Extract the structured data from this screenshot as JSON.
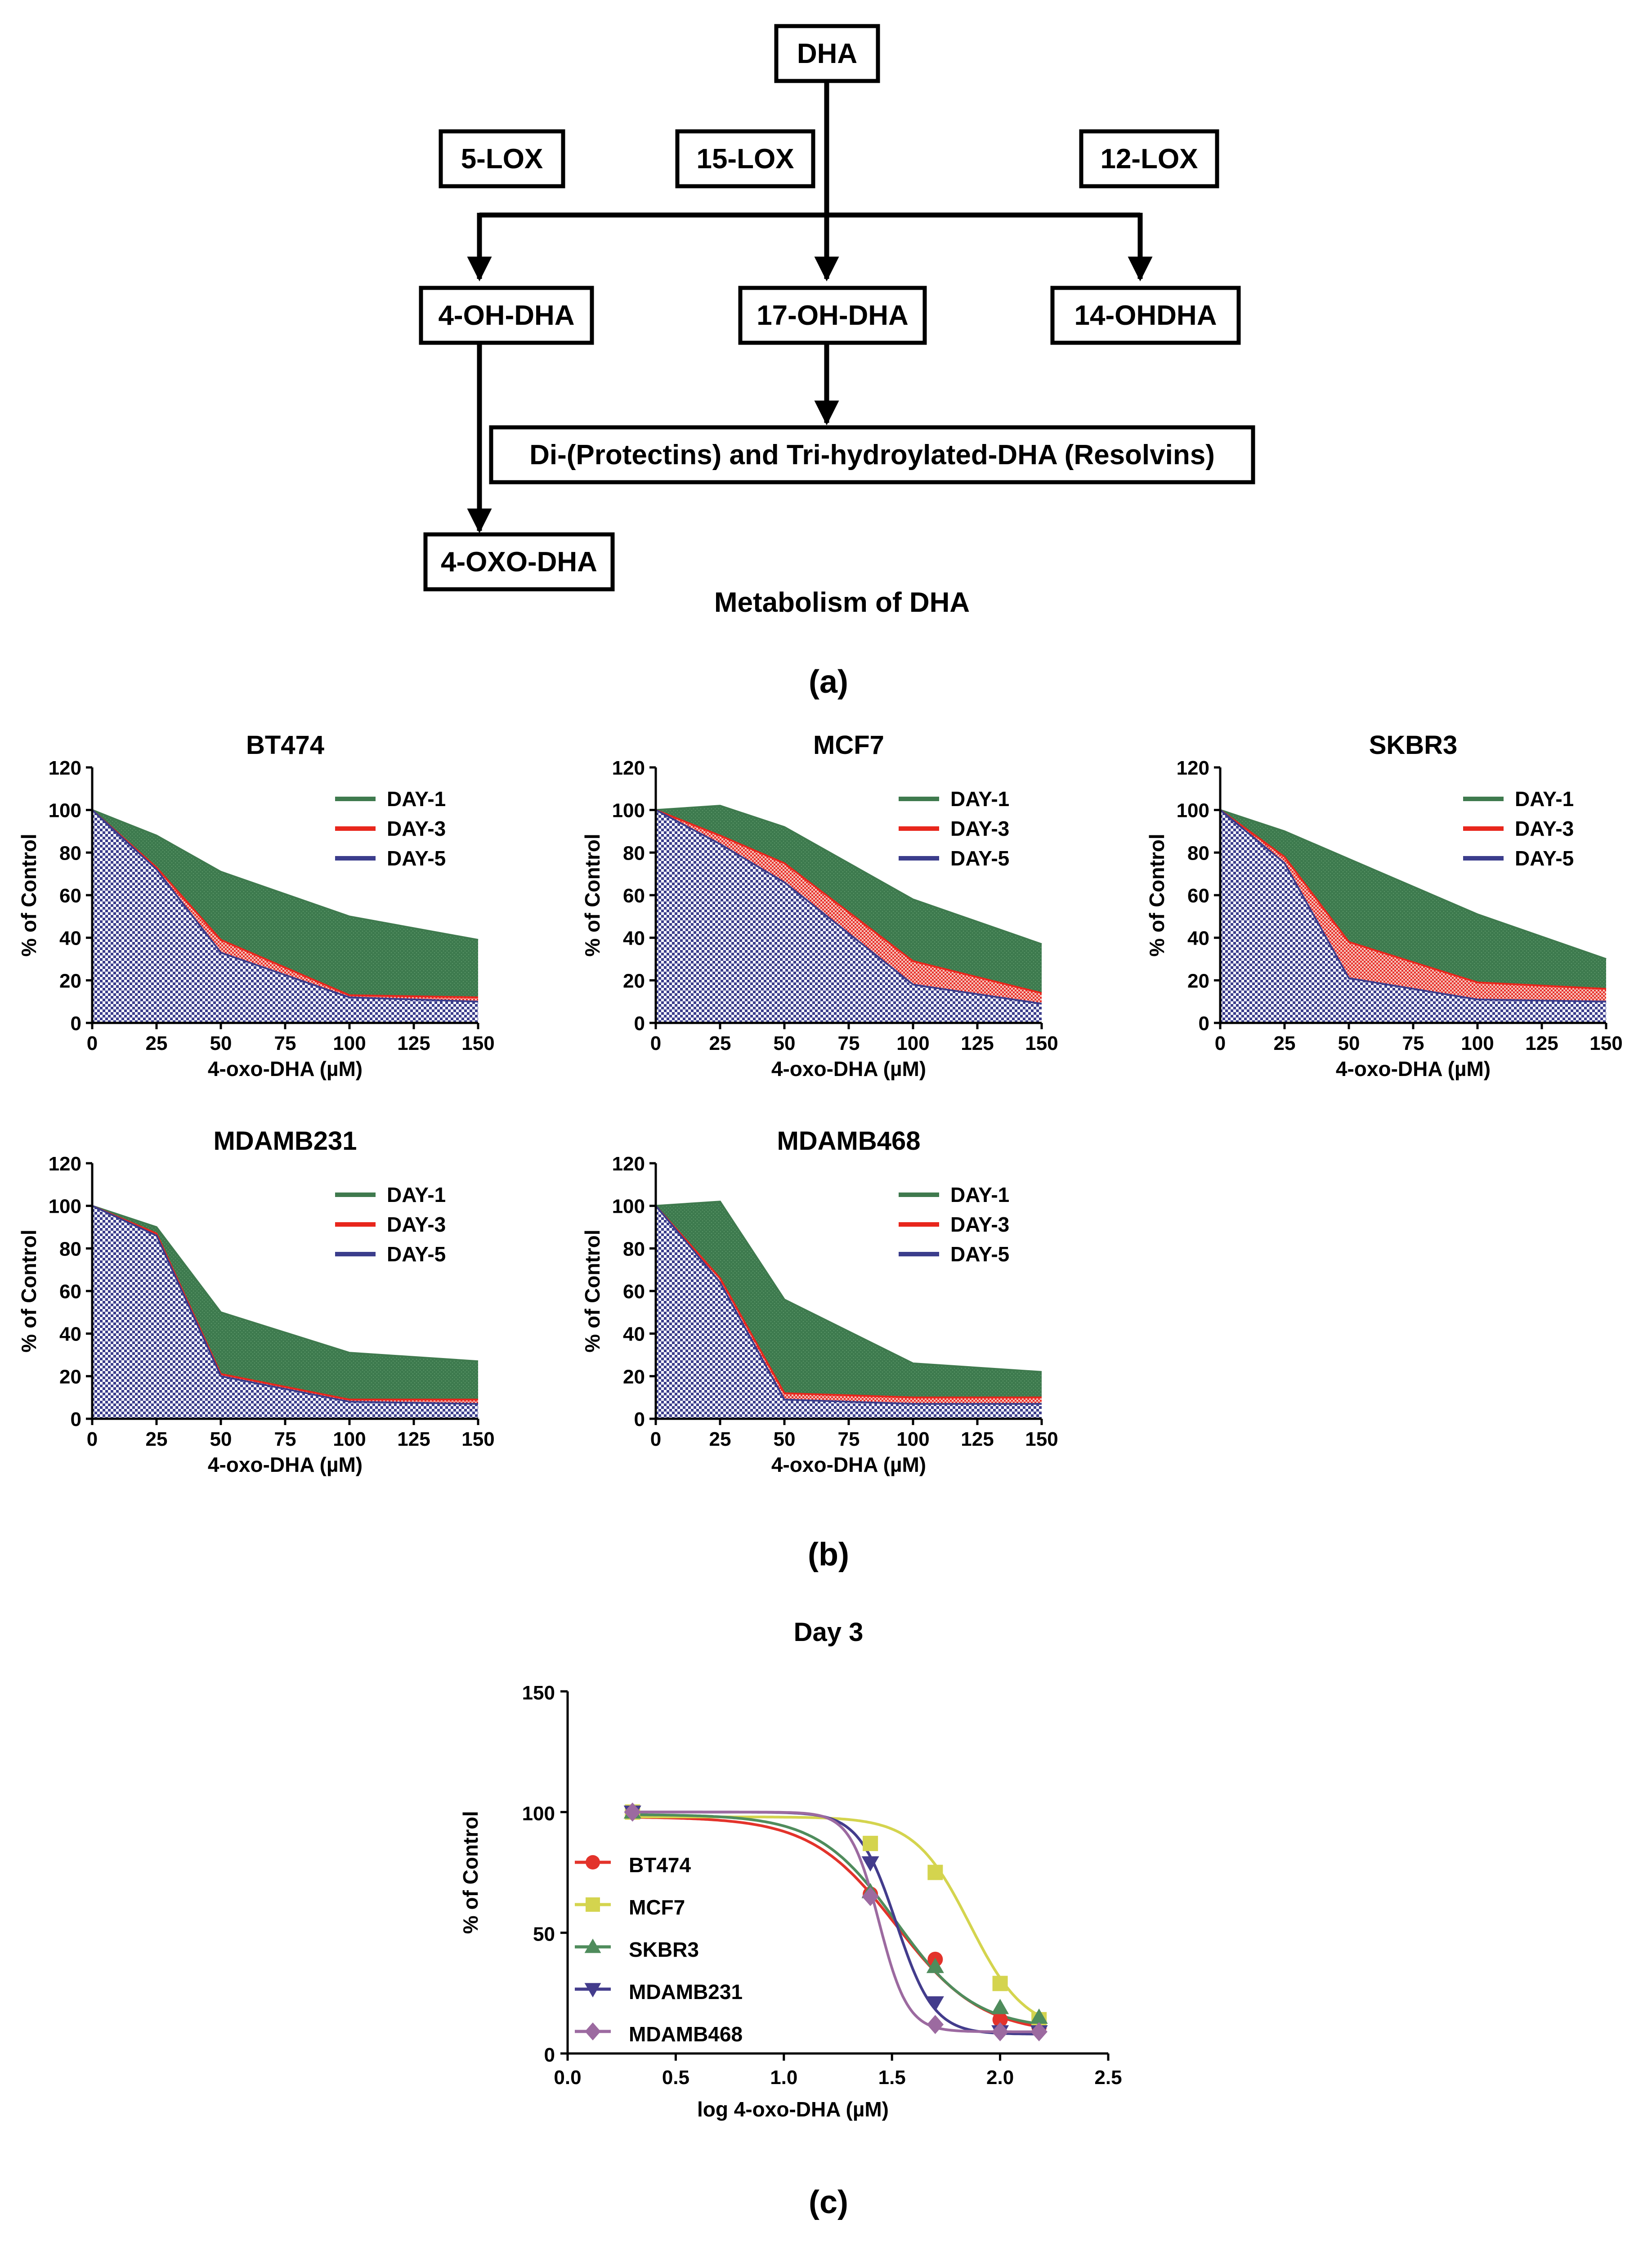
{
  "panel_a": {
    "nodes": {
      "dha": "DHA",
      "lox5": "5-LOX",
      "lox15": "15-LOX",
      "lox12": "12-LOX",
      "oh4": "4-OH-DHA",
      "oh17": "17-OH-DHA",
      "oh14": "14-OHDHA",
      "resolvins": "Di-(Protectins) and Tri-hydroylated-DHA (Resolvins)",
      "oxo4": "4-OXO-DHA"
    },
    "title": "Metabolism of DHA",
    "caption": "(a)"
  },
  "panel_b": {
    "caption": "(b)"
  },
  "panel_c": {
    "caption": "(c)"
  },
  "colors": {
    "day1": "#3f7a4e",
    "day3": "#e8261c",
    "day5": "#3b3d8c",
    "bt474": "#e3332b",
    "mcf7": "#d4d44e",
    "skbr3": "#4f8c5c",
    "mdamb231": "#433c8c",
    "mdamb468": "#9c6aa0"
  },
  "chart_data": [
    {
      "id": "bt474",
      "type": "area",
      "title": "BT474",
      "xlabel": "4-oxo-DHA (µM)",
      "ylabel": "% of Control",
      "x": [
        0,
        25,
        50,
        100,
        150
      ],
      "xticks": [
        "0",
        "25",
        "50",
        "75",
        "100",
        "125",
        "150"
      ],
      "yticks": [
        "0",
        "20",
        "40",
        "60",
        "80",
        "100",
        "120"
      ],
      "xlim": [
        0,
        150
      ],
      "ylim": [
        0,
        120
      ],
      "legend": "top-right",
      "series": [
        {
          "name": "DAY-1",
          "values": [
            100,
            88,
            71,
            50,
            39
          ]
        },
        {
          "name": "DAY-3",
          "values": [
            100,
            73,
            39,
            13,
            12
          ]
        },
        {
          "name": "DAY-5",
          "values": [
            100,
            72,
            33,
            12,
            10
          ]
        }
      ]
    },
    {
      "id": "mcf7",
      "type": "area",
      "title": "MCF7",
      "xlabel": "4-oxo-DHA (µM)",
      "ylabel": "% of Control",
      "x": [
        0,
        25,
        50,
        100,
        150
      ],
      "xticks": [
        "0",
        "25",
        "50",
        "75",
        "100",
        "125",
        "150"
      ],
      "yticks": [
        "0",
        "20",
        "40",
        "60",
        "80",
        "100",
        "120"
      ],
      "xlim": [
        0,
        150
      ],
      "ylim": [
        0,
        120
      ],
      "legend": "top-right",
      "series": [
        {
          "name": "DAY-1",
          "values": [
            100,
            102,
            92,
            58,
            37
          ]
        },
        {
          "name": "DAY-3",
          "values": [
            100,
            88,
            75,
            29,
            14
          ]
        },
        {
          "name": "DAY-5",
          "values": [
            100,
            84,
            66,
            18,
            9
          ]
        }
      ]
    },
    {
      "id": "skbr3",
      "type": "area",
      "title": "SKBR3",
      "xlabel": "4-oxo-DHA (µM)",
      "ylabel": "% of Control",
      "x": [
        0,
        25,
        50,
        100,
        150
      ],
      "xticks": [
        "0",
        "25",
        "50",
        "75",
        "100",
        "125",
        "150"
      ],
      "yticks": [
        "0",
        "20",
        "40",
        "60",
        "80",
        "100",
        "120"
      ],
      "xlim": [
        0,
        150
      ],
      "ylim": [
        0,
        120
      ],
      "legend": "top-right",
      "series": [
        {
          "name": "DAY-1",
          "values": [
            100,
            90,
            77,
            51,
            30
          ]
        },
        {
          "name": "DAY-3",
          "values": [
            100,
            78,
            38,
            19,
            16
          ]
        },
        {
          "name": "DAY-5",
          "values": [
            100,
            75,
            21,
            11,
            10
          ]
        }
      ]
    },
    {
      "id": "mdamb231",
      "type": "area",
      "title": "MDAMB231",
      "xlabel": "4-oxo-DHA (µM)",
      "ylabel": "% of Control",
      "x": [
        0,
        25,
        50,
        100,
        150
      ],
      "xticks": [
        "0",
        "25",
        "50",
        "75",
        "100",
        "125",
        "150"
      ],
      "yticks": [
        "0",
        "20",
        "40",
        "60",
        "80",
        "100",
        "120"
      ],
      "xlim": [
        0,
        150
      ],
      "ylim": [
        0,
        120
      ],
      "legend": "top-right",
      "series": [
        {
          "name": "DAY-1",
          "values": [
            100,
            90,
            50,
            31,
            27
          ]
        },
        {
          "name": "DAY-3",
          "values": [
            100,
            87,
            21,
            9,
            9
          ]
        },
        {
          "name": "DAY-5",
          "values": [
            100,
            86,
            20,
            8,
            7
          ]
        }
      ]
    },
    {
      "id": "mdamb468",
      "type": "area",
      "title": "MDAMB468",
      "xlabel": "4-oxo-DHA (µM)",
      "ylabel": "% of Control",
      "x": [
        0,
        25,
        50,
        100,
        150
      ],
      "xticks": [
        "0",
        "25",
        "50",
        "75",
        "100",
        "125",
        "150"
      ],
      "yticks": [
        "0",
        "20",
        "40",
        "60",
        "80",
        "100",
        "120"
      ],
      "xlim": [
        0,
        150
      ],
      "ylim": [
        0,
        120
      ],
      "legend": "top-right",
      "series": [
        {
          "name": "DAY-1",
          "values": [
            100,
            102,
            56,
            26,
            22
          ]
        },
        {
          "name": "DAY-3",
          "values": [
            100,
            66,
            12,
            10,
            10
          ]
        },
        {
          "name": "DAY-5",
          "values": [
            100,
            64,
            9,
            7,
            7
          ]
        }
      ]
    },
    {
      "id": "day3",
      "type": "scatter",
      "title": "Day 3",
      "xlabel": "log 4-oxo-DHA (µM)",
      "ylabel": "% of Control",
      "xlim": [
        0,
        2.5
      ],
      "ylim": [
        0,
        150
      ],
      "xticks": [
        "0.0",
        "0.5",
        "1.0",
        "1.5",
        "2.0",
        "2.5"
      ],
      "yticks": [
        "0",
        "50",
        "100",
        "150"
      ],
      "legend": "left",
      "x": [
        0.3,
        1.4,
        1.7,
        2.0,
        2.18
      ],
      "series": [
        {
          "name": "BT474",
          "marker": "circle",
          "values": [
            100,
            66,
            39,
            14,
            11
          ],
          "fit": {
            "top": 98,
            "bottom": 8,
            "logec50": 1.52,
            "hill": 2.2
          }
        },
        {
          "name": "MCF7",
          "marker": "square",
          "values": [
            100,
            87,
            75,
            29,
            14
          ],
          "fit": {
            "top": 98,
            "bottom": 9,
            "logec50": 1.86,
            "hill": 3.4
          }
        },
        {
          "name": "SKBR3",
          "marker": "triangle-up",
          "values": [
            100,
            67,
            36,
            19,
            15
          ],
          "fit": {
            "top": 99,
            "bottom": 10,
            "logec50": 1.52,
            "hill": 2.4
          }
        },
        {
          "name": "MDAMB231",
          "marker": "triangle-down",
          "values": [
            100,
            79,
            21,
            9,
            9
          ],
          "fit": {
            "top": 100,
            "bottom": 8,
            "logec50": 1.52,
            "hill": 5.0
          }
        },
        {
          "name": "MDAMB468",
          "marker": "diamond",
          "values": [
            100,
            65,
            12,
            9,
            9
          ],
          "fit": {
            "top": 100,
            "bottom": 9,
            "logec50": 1.44,
            "hill": 6.5
          }
        }
      ]
    }
  ]
}
